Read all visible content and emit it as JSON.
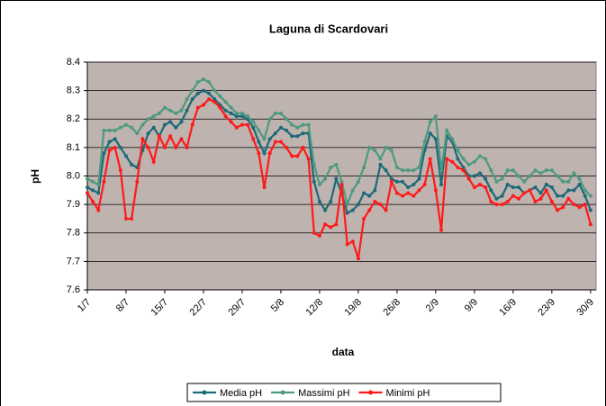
{
  "chart_data": {
    "type": "line",
    "title": "Laguna di Scardovari",
    "x_label": "data",
    "y_label": "pH",
    "categories": [
      "1/7",
      null,
      null,
      null,
      null,
      null,
      null,
      "8/7",
      null,
      null,
      null,
      null,
      null,
      null,
      "15/7",
      null,
      null,
      null,
      null,
      null,
      null,
      "22/7",
      null,
      null,
      null,
      null,
      null,
      null,
      "29/7",
      null,
      null,
      null,
      null,
      null,
      null,
      "5/8",
      null,
      null,
      null,
      null,
      null,
      null,
      "12/8",
      null,
      null,
      null,
      null,
      null,
      null,
      "19/8",
      null,
      null,
      null,
      null,
      null,
      null,
      "26/8",
      null,
      null,
      null,
      null,
      null,
      null,
      "2/9",
      null,
      null,
      null,
      null,
      null,
      null,
      "9/9",
      null,
      null,
      null,
      null,
      null,
      null,
      "16/9",
      null,
      null,
      null,
      null,
      null,
      null,
      "23/9",
      null,
      null,
      null,
      null,
      null,
      null,
      "30/9"
    ],
    "series": [
      {
        "name": "Media pH",
        "color": "#1c6a78",
        "values": [
          7.96,
          7.95,
          7.94,
          8.08,
          8.12,
          8.13,
          8.1,
          8.07,
          8.04,
          8.03,
          8.09,
          8.15,
          8.17,
          8.14,
          8.18,
          8.19,
          8.17,
          8.19,
          8.23,
          8.27,
          8.29,
          8.3,
          8.29,
          8.27,
          8.25,
          8.23,
          8.22,
          8.21,
          8.21,
          8.2,
          8.17,
          8.12,
          8.08,
          8.13,
          8.15,
          8.17,
          8.16,
          8.14,
          8.14,
          8.15,
          8.15,
          7.98,
          7.91,
          7.88,
          7.91,
          7.99,
          7.94,
          7.87,
          7.88,
          7.9,
          7.94,
          7.93,
          7.95,
          8.04,
          8.02,
          7.99,
          7.98,
          7.98,
          7.96,
          7.97,
          7.99,
          8.09,
          8.15,
          8.13,
          7.97,
          8.14,
          8.12,
          8.06,
          8.03,
          8.0,
          8.0,
          8.01,
          7.99,
          7.95,
          7.92,
          7.93,
          7.97,
          7.96,
          7.96,
          7.94,
          7.95,
          7.96,
          7.94,
          7.97,
          7.96,
          7.93,
          7.93,
          7.95,
          7.95,
          7.97,
          7.93,
          7.88
        ]
      },
      {
        "name": "Massimi  pH",
        "color": "#4e9a80",
        "values": [
          7.99,
          7.98,
          7.97,
          8.16,
          8.16,
          8.16,
          8.17,
          8.18,
          8.17,
          8.15,
          8.18,
          8.2,
          8.21,
          8.22,
          8.24,
          8.23,
          8.22,
          8.23,
          8.27,
          8.3,
          8.33,
          8.34,
          8.33,
          8.3,
          8.28,
          8.26,
          8.24,
          8.22,
          8.22,
          8.21,
          8.19,
          8.16,
          8.13,
          8.2,
          8.22,
          8.22,
          8.2,
          8.18,
          8.17,
          8.18,
          8.18,
          8.04,
          7.97,
          7.99,
          8.03,
          8.04,
          7.98,
          7.9,
          7.95,
          7.98,
          8.03,
          8.1,
          8.09,
          8.06,
          8.1,
          8.09,
          8.03,
          8.02,
          8.02,
          8.02,
          8.03,
          8.12,
          8.19,
          8.21,
          8.02,
          8.16,
          8.13,
          8.09,
          8.06,
          8.04,
          8.05,
          8.07,
          8.06,
          8.02,
          7.98,
          7.99,
          8.02,
          8.02,
          8.0,
          7.98,
          8.0,
          8.02,
          8.01,
          8.02,
          8.02,
          8.0,
          7.98,
          7.98,
          8.01,
          7.99,
          7.95,
          7.93
        ]
      },
      {
        "name": "Minimi pH",
        "color": "#ff1a1a",
        "values": [
          7.94,
          7.91,
          7.88,
          7.98,
          8.09,
          8.1,
          8.02,
          7.85,
          7.85,
          7.98,
          8.13,
          8.1,
          8.05,
          8.14,
          8.1,
          8.14,
          8.1,
          8.13,
          8.1,
          8.18,
          8.24,
          8.25,
          8.27,
          8.26,
          8.24,
          8.21,
          8.19,
          8.17,
          8.18,
          8.18,
          8.13,
          8.08,
          7.96,
          8.08,
          8.12,
          8.12,
          8.1,
          8.07,
          8.07,
          8.1,
          8.06,
          7.8,
          7.79,
          7.83,
          7.82,
          7.83,
          7.97,
          7.76,
          7.77,
          7.71,
          7.85,
          7.88,
          7.91,
          7.9,
          7.88,
          7.98,
          7.94,
          7.93,
          7.94,
          7.93,
          7.95,
          7.97,
          8.06,
          7.95,
          7.81,
          8.06,
          8.05,
          8.03,
          8.02,
          7.99,
          7.96,
          7.97,
          7.96,
          7.91,
          7.9,
          7.9,
          7.91,
          7.93,
          7.92,
          7.94,
          7.95,
          7.91,
          7.92,
          7.95,
          7.91,
          7.88,
          7.89,
          7.92,
          7.9,
          7.89,
          7.9,
          7.83
        ]
      }
    ],
    "ylim": [
      7.6,
      8.4
    ],
    "yticks": [
      7.6,
      7.7,
      7.8,
      7.9,
      {
        "value": 8,
        "label": "8.0"
      },
      8.1,
      8.2,
      8.3,
      8.4
    ],
    "grid": true,
    "plot_background": "#bfb3af",
    "legend": "bottom"
  }
}
